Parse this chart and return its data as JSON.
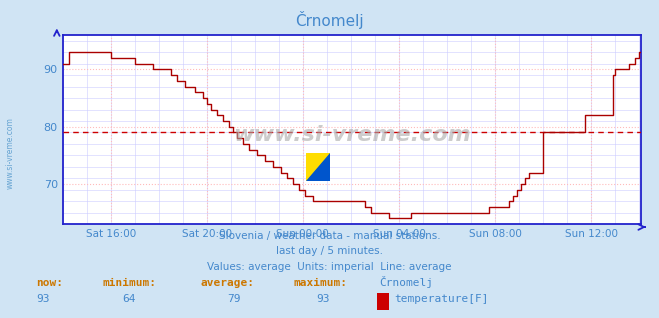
{
  "title": "Črnomelj",
  "bg_color": "#d0e4f4",
  "plot_bg_color": "#ffffff",
  "line_color": "#aa0000",
  "avg_line_color": "#cc0000",
  "avg_value": 79,
  "grid_color_h": "#ffbbbb",
  "grid_color_v": "#ccccff",
  "xlabel_color": "#4488cc",
  "ylabel_color": "#4488cc",
  "title_color": "#4488cc",
  "text_color": "#4488cc",
  "axis_color": "#2222cc",
  "ylim": [
    63,
    96
  ],
  "yticks": [
    70,
    80,
    90
  ],
  "xlim_points": 289,
  "xtick_positions": [
    24,
    72,
    120,
    168,
    216,
    264
  ],
  "xtick_labels": [
    "Sat 16:00",
    "Sat 20:00",
    "Sun 00:00",
    "Sun 04:00",
    "Sun 08:00",
    "Sun 12:00"
  ],
  "footer_line1": "Slovenia / weather data - manual stations.",
  "footer_line2": "last day / 5 minutes.",
  "footer_line3": "Values: average  Units: imperial  Line: average",
  "stats_label1": "now:",
  "stats_label2": "minimum:",
  "stats_label3": "average:",
  "stats_label4": "maximum:",
  "stats_label5": "Črnomelj",
  "stats_val1": "93",
  "stats_val2": "64",
  "stats_val3": "79",
  "stats_val4": "93",
  "legend_label": "temperature[F]",
  "watermark": "www.si-vreme.com",
  "data_y": [
    91,
    91,
    91,
    93,
    93,
    93,
    93,
    93,
    93,
    93,
    93,
    93,
    93,
    93,
    93,
    93,
    93,
    93,
    93,
    93,
    93,
    93,
    93,
    93,
    92,
    92,
    92,
    92,
    92,
    92,
    92,
    92,
    92,
    92,
    92,
    92,
    91,
    91,
    91,
    91,
    91,
    91,
    91,
    91,
    91,
    90,
    90,
    90,
    90,
    90,
    90,
    90,
    90,
    90,
    89,
    89,
    89,
    88,
    88,
    88,
    88,
    87,
    87,
    87,
    87,
    87,
    86,
    86,
    86,
    86,
    85,
    85,
    84,
    84,
    83,
    83,
    83,
    82,
    82,
    82,
    81,
    81,
    81,
    80,
    80,
    79,
    79,
    78,
    78,
    78,
    77,
    77,
    77,
    76,
    76,
    76,
    76,
    75,
    75,
    75,
    75,
    74,
    74,
    74,
    74,
    73,
    73,
    73,
    73,
    72,
    72,
    72,
    71,
    71,
    71,
    70,
    70,
    70,
    69,
    69,
    69,
    68,
    68,
    68,
    68,
    67,
    67,
    67,
    67,
    67,
    67,
    67,
    67,
    67,
    67,
    67,
    67,
    67,
    67,
    67,
    67,
    67,
    67,
    67,
    67,
    67,
    67,
    67,
    67,
    67,
    67,
    66,
    66,
    66,
    65,
    65,
    65,
    65,
    65,
    65,
    65,
    65,
    65,
    64,
    64,
    64,
    64,
    64,
    64,
    64,
    64,
    64,
    64,
    64,
    65,
    65,
    65,
    65,
    65,
    65,
    65,
    65,
    65,
    65,
    65,
    65,
    65,
    65,
    65,
    65,
    65,
    65,
    65,
    65,
    65,
    65,
    65,
    65,
    65,
    65,
    65,
    65,
    65,
    65,
    65,
    65,
    65,
    65,
    65,
    65,
    65,
    65,
    65,
    66,
    66,
    66,
    66,
    66,
    66,
    66,
    66,
    66,
    66,
    67,
    67,
    68,
    68,
    69,
    69,
    70,
    70,
    71,
    71,
    72,
    72,
    72,
    72,
    72,
    72,
    72,
    79,
    79,
    79,
    79,
    79,
    79,
    79,
    79,
    79,
    79,
    79,
    79,
    79,
    79,
    79,
    79,
    79,
    79,
    79,
    79,
    79,
    82,
    82,
    82,
    82,
    82,
    82,
    82,
    82,
    82,
    82,
    82,
    82,
    82,
    82,
    89,
    90,
    90,
    90,
    90,
    90,
    90,
    90,
    91,
    91,
    91,
    92,
    92,
    93,
    93,
    93,
    93,
    93,
    93,
    93
  ]
}
